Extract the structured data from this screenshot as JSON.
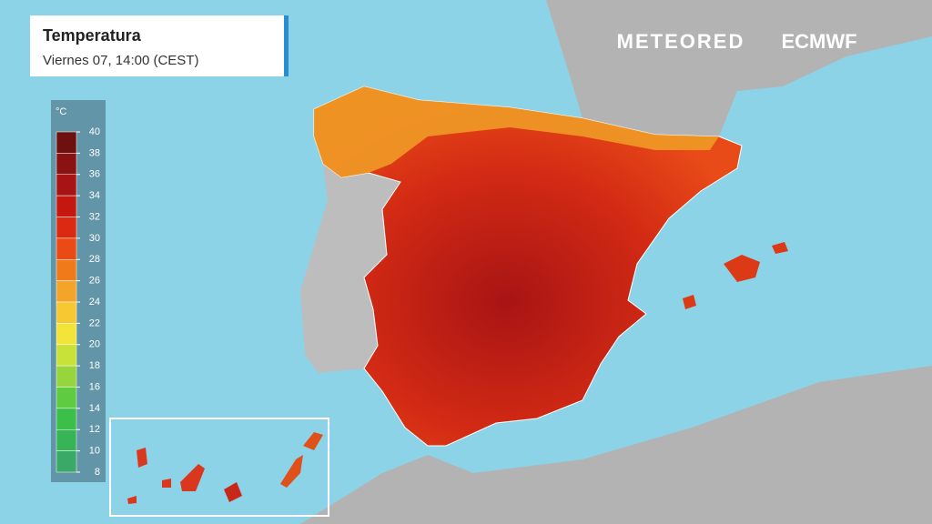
{
  "header": {
    "title": "Temperatura",
    "subtitle": "Viernes 07, 14:00 (CEST)"
  },
  "brands": [
    "METEORED",
    "ECMWF"
  ],
  "legend": {
    "unit": "°C",
    "ticks": [
      40,
      38,
      36,
      34,
      32,
      30,
      28,
      26,
      24,
      22,
      20,
      18,
      16,
      14,
      12,
      10,
      8
    ],
    "colors": [
      "#6e1010",
      "#8a1212",
      "#a81414",
      "#c4180f",
      "#dc2a12",
      "#ec4a14",
      "#f07a1a",
      "#f4a428",
      "#f7c832",
      "#f2e438",
      "#c8e23a",
      "#96d63c",
      "#5ecb40",
      "#3cbf48",
      "#36b456",
      "#3aa866"
    ]
  }
}
